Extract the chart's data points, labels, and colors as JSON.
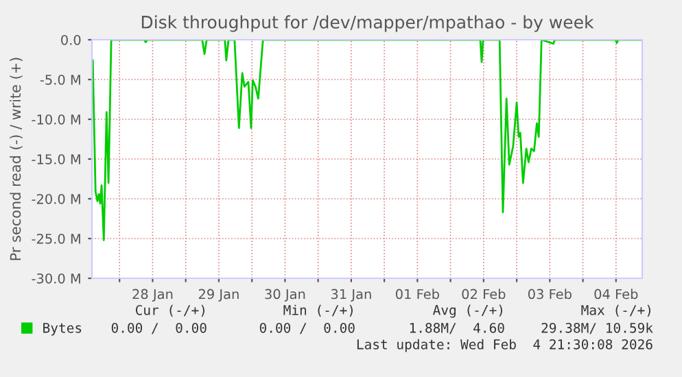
{
  "chart_data": {
    "type": "line",
    "title": "Disk throughput for /dev/mapper/mpathao - by week",
    "ylabel": "Pr second read (-) / write (+)",
    "xlim": [
      "2026-01-27T14:00",
      "2026-02-04T21:30"
    ],
    "xticks": [
      {
        "value": "2026-01-28T00:00",
        "label": null
      },
      {
        "value": "2026-01-28T12:00",
        "label": "28 Jan"
      },
      {
        "value": "2026-01-29T00:00",
        "label": null
      },
      {
        "value": "2026-01-29T12:00",
        "label": "29 Jan"
      },
      {
        "value": "2026-01-30T00:00",
        "label": null
      },
      {
        "value": "2026-01-30T12:00",
        "label": "30 Jan"
      },
      {
        "value": "2026-01-31T00:00",
        "label": null
      },
      {
        "value": "2026-01-31T12:00",
        "label": "31 Jan"
      },
      {
        "value": "2026-02-01T00:00",
        "label": null
      },
      {
        "value": "2026-02-01T12:00",
        "label": "01 Feb"
      },
      {
        "value": "2026-02-02T00:00",
        "label": null
      },
      {
        "value": "2026-02-02T12:00",
        "label": "02 Feb"
      },
      {
        "value": "2026-02-03T00:00",
        "label": null
      },
      {
        "value": "2026-02-03T12:00",
        "label": "03 Feb"
      },
      {
        "value": "2026-02-04T00:00",
        "label": null
      },
      {
        "value": "2026-02-04T12:00",
        "label": "04 Feb"
      }
    ],
    "ylim": [
      -30,
      0
    ],
    "yticks": [
      {
        "value": -30,
        "label": "-30.0 M"
      },
      {
        "value": -25,
        "label": "-25.0 M"
      },
      {
        "value": -20,
        "label": "-20.0 M"
      },
      {
        "value": -15,
        "label": "-15.0 M"
      },
      {
        "value": -10,
        "label": "-10.0 M"
      },
      {
        "value": -5,
        "label": "-5.0 M"
      },
      {
        "value": 0,
        "label": "0.0"
      }
    ],
    "grid": true,
    "legend": "bottom left",
    "marker": "none",
    "line_style": "solid",
    "series": [
      {
        "name": "Bytes",
        "color": "#00cc00",
        "x": [
          "2026-01-27T14:18",
          "2026-01-27T15:18",
          "2026-01-27T16:00",
          "2026-01-27T16:30",
          "2026-01-27T17:00",
          "2026-01-27T17:30",
          "2026-01-27T18:18",
          "2026-01-27T19:18",
          "2026-01-27T20:00",
          "2026-01-27T21:00",
          "2026-01-28T09:00",
          "2026-01-28T09:30",
          "2026-01-28T10:00",
          "2026-01-29T06:00",
          "2026-01-29T06:48",
          "2026-01-29T07:36",
          "2026-01-29T14:12",
          "2026-01-29T14:42",
          "2026-01-29T15:30",
          "2026-01-29T17:42",
          "2026-01-29T19:18",
          "2026-01-29T20:30",
          "2026-01-29T21:18",
          "2026-01-29T22:42",
          "2026-01-29T23:42",
          "2026-01-30T00:18",
          "2026-01-30T01:18",
          "2026-01-30T02:18",
          "2026-01-30T04:00",
          "2026-02-02T10:48",
          "2026-02-02T11:18",
          "2026-02-02T11:48",
          "2026-02-02T17:48",
          "2026-02-02T19:00",
          "2026-02-02T20:18",
          "2026-02-02T21:18",
          "2026-02-02T22:42",
          "2026-02-03T00:00",
          "2026-02-03T00:42",
          "2026-02-03T01:18",
          "2026-02-03T02:18",
          "2026-02-03T03:30",
          "2026-02-03T04:18",
          "2026-02-03T05:18",
          "2026-02-03T06:18",
          "2026-02-03T07:18",
          "2026-02-03T08:00",
          "2026-02-03T09:00",
          "2026-02-03T13:18",
          "2026-02-03T13:48",
          "2026-02-04T11:48",
          "2026-02-04T12:18",
          "2026-02-04T12:48",
          "2026-02-04T21:30"
        ],
        "values": [
          -2.6,
          -19.1,
          -20.3,
          -19.4,
          -20.6,
          -18.3,
          -25.2,
          -9.1,
          -18.0,
          0,
          0,
          -0.3,
          0,
          0,
          -1.8,
          0,
          0,
          -2.6,
          0,
          0,
          -11.1,
          -4.2,
          -5.9,
          -5.3,
          -11.1,
          -5.1,
          -5.9,
          -7.4,
          0,
          0,
          -2.8,
          0,
          0,
          -21.7,
          -7.4,
          -15.7,
          -13.4,
          -7.9,
          -12.2,
          -11.7,
          -18.0,
          -13.7,
          -15.4,
          -13.7,
          -14.0,
          -10.5,
          -12.2,
          0,
          -0.5,
          0,
          0,
          -0.4,
          0,
          0
        ]
      }
    ],
    "annotations": [
      "Cur (-/+)",
      "Min (-/+)",
      "Avg (-/+)",
      "Max (-/+)",
      "0.00 /  0.00",
      "0.00 /  0.00",
      "1.88M/  4.60",
      "29.38M/ 10.59k",
      "Last update: Wed Feb  4 21:30:08 2026"
    ]
  }
}
